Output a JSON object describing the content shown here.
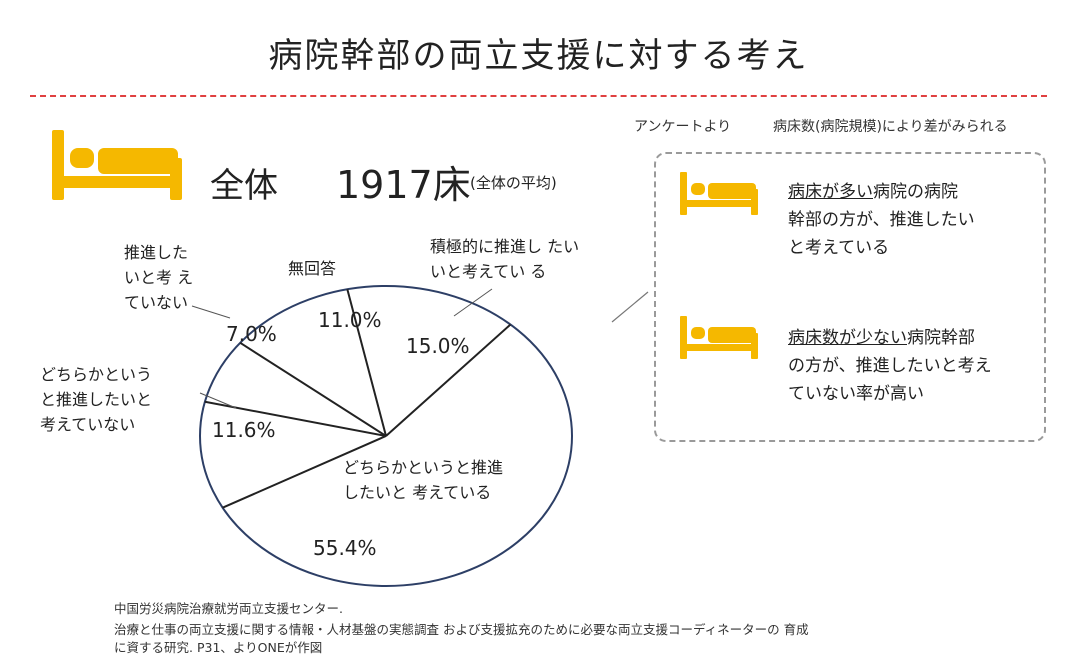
{
  "header": {
    "title": "病院幹部の両立支援に対する考え",
    "survey_note": "アンケートより",
    "difference_note": "病床数(病院規模)により差がみられる"
  },
  "summary": {
    "total_label": "全体",
    "total_value": "1917床",
    "total_sub": "(全体の平均)"
  },
  "icons": {
    "bed": "bed-icon",
    "color": "#f5b800"
  },
  "chart_data": {
    "type": "pie",
    "start_angle_deg": -12,
    "direction": "clockwise",
    "slices": [
      {
        "label_lines": [
          "積極的に推進し たい",
          "いと考えてい る"
        ],
        "value": 15.0,
        "pct": "15.0%"
      },
      {
        "label_lines": [
          "どちらかというと推進",
          "したいと 考えている"
        ],
        "value": 55.4,
        "pct": "55.4%"
      },
      {
        "label_lines": [
          "どちらかという",
          "と推進したいと",
          "考えていない"
        ],
        "value": 11.6,
        "pct": "11.6%"
      },
      {
        "label_lines": [
          "推進した",
          "いと考 え",
          "ていない"
        ],
        "value": 7.0,
        "pct": "7.0%"
      },
      {
        "label_lines": [
          "無回答"
        ],
        "value": 11.0,
        "pct": "11.0%"
      }
    ],
    "colors": {
      "fill": "#ffffff",
      "outline": "#2d3f66",
      "divider": "#222222"
    }
  },
  "findings": [
    {
      "emphasis": "病床が多い",
      "rest_lines": [
        "病院の病院",
        "幹部の方が、推進したい",
        "と考えている"
      ]
    },
    {
      "emphasis": "病床数が少ない",
      "rest_lines": [
        "病院幹部",
        "の方が、推進したいと考え",
        "ていない率が高い"
      ]
    }
  ],
  "source": {
    "lines": [
      "中国労災病院治療就労両立支援センター.",
      "治療と仕事の両立支援に関する情報・人材基盤の実態調査 および支援拡充のために必要な両立支援コーディネーターの 育成",
      "に資する研究. P31、よりONEが作図"
    ]
  }
}
